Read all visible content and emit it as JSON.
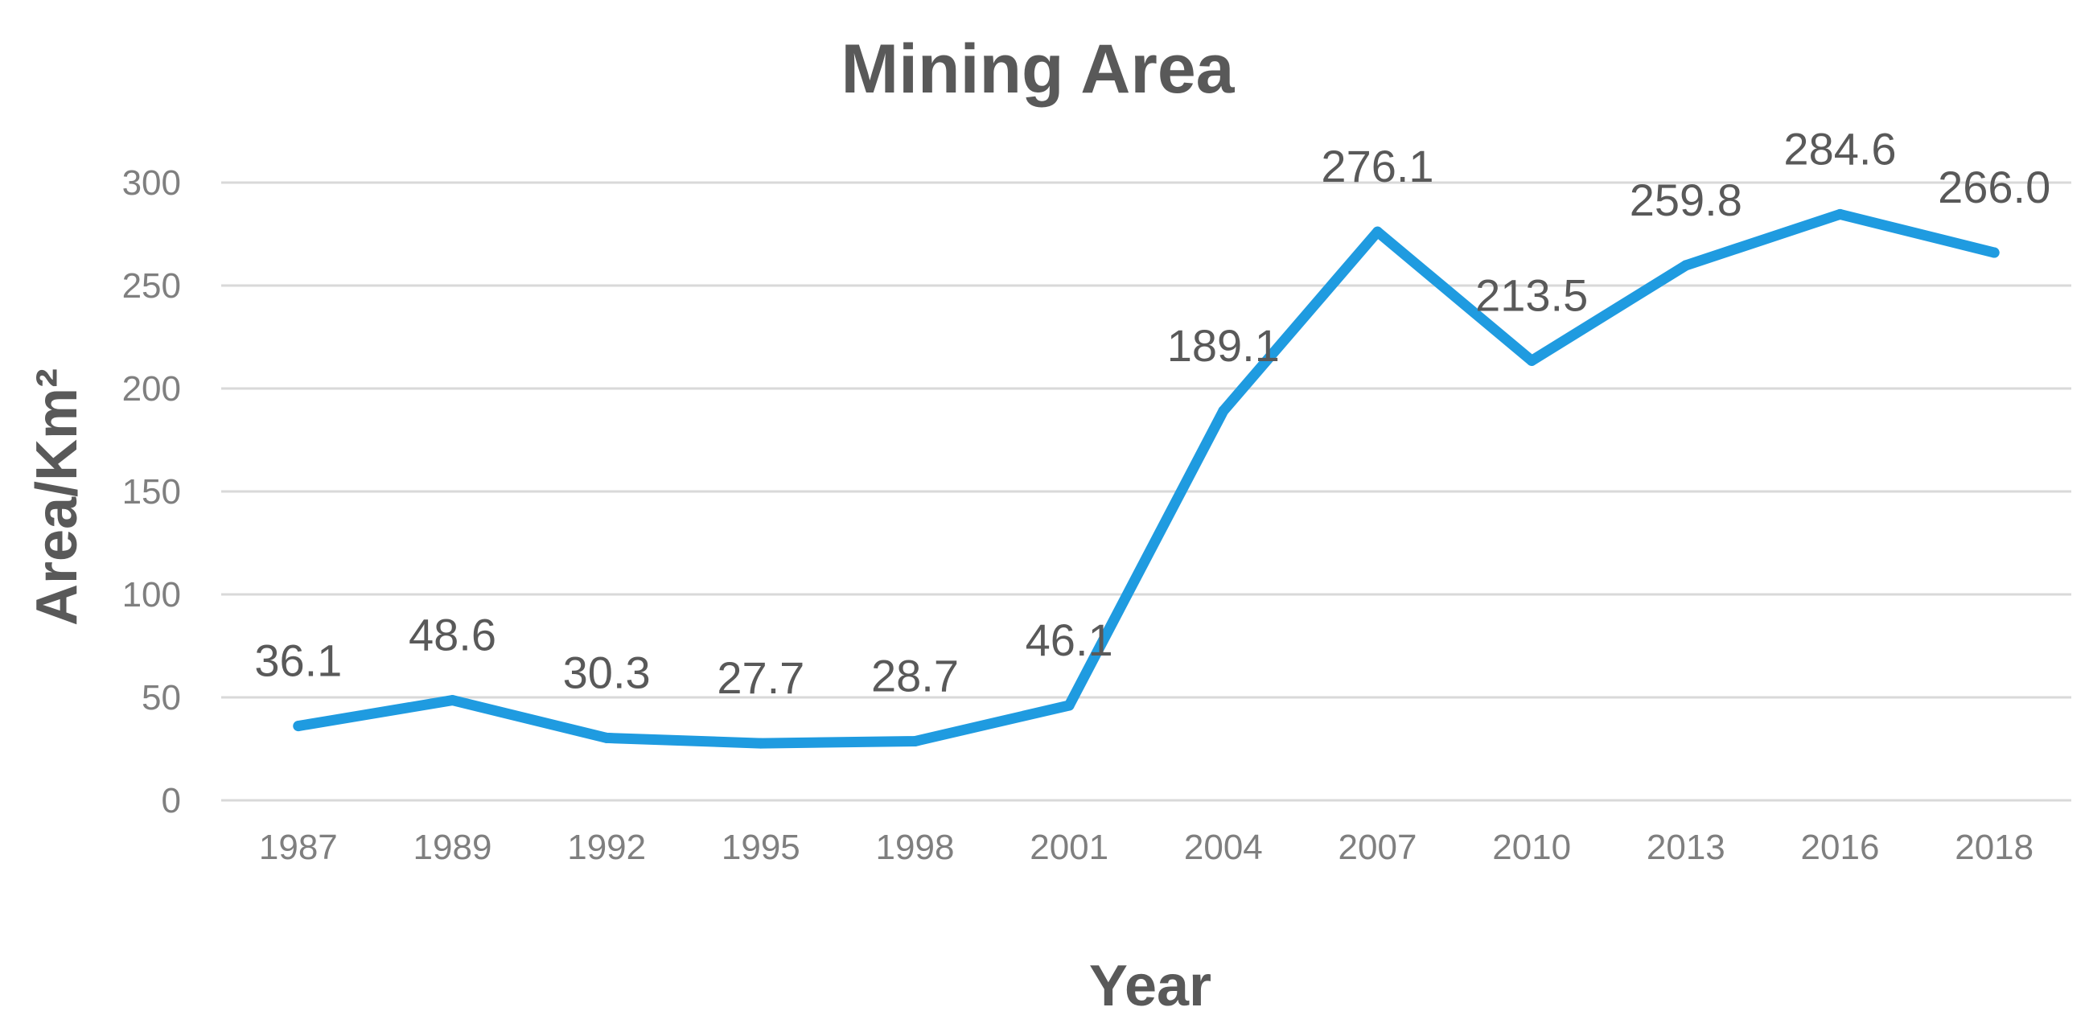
{
  "chart_data": {
    "type": "line",
    "title": "Mining Area",
    "xlabel": "Year",
    "ylabel": "Area/Km²",
    "categories": [
      "1987",
      "1989",
      "1992",
      "1995",
      "1998",
      "2001",
      "2004",
      "2007",
      "2010",
      "2013",
      "2016",
      "2018"
    ],
    "series": [
      {
        "values": [
          36.1,
          48.6,
          30.3,
          27.7,
          28.7,
          46.1,
          189.1,
          276.1,
          213.5,
          259.8,
          284.6,
          266.0
        ],
        "labels": [
          "36.1",
          "48.6",
          "30.3",
          "27.7",
          "28.7",
          "46.1",
          "189.1",
          "276.1",
          "213.5",
          "259.8",
          "284.6",
          "266.0"
        ],
        "color": "#1f9be0"
      }
    ],
    "ylim": [
      0,
      300
    ],
    "yticks": [
      "0",
      "50",
      "100",
      "150",
      "200",
      "250",
      "300"
    ],
    "grid": true,
    "legend": "none"
  }
}
